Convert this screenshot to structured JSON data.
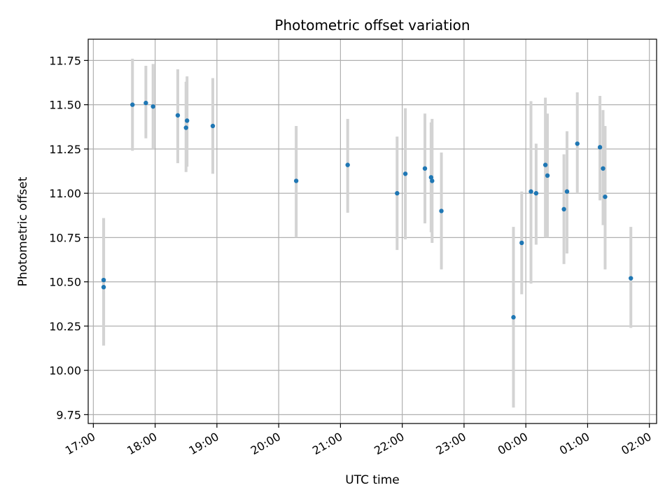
{
  "chart_data": {
    "type": "scatter",
    "title": "Photometric offset variation",
    "xlabel": "UTC time",
    "ylabel": "Photometric offset",
    "x_unit": "UTC time (hours of day, crossing midnight)",
    "xlim": [
      "16:55",
      "02:07"
    ],
    "ylim": [
      9.7,
      11.87
    ],
    "grid": true,
    "x_ticks": [
      "17:00",
      "18:00",
      "19:00",
      "20:00",
      "21:00",
      "22:00",
      "23:00",
      "00:00",
      "01:00",
      "02:00"
    ],
    "y_ticks": [
      9.75,
      10.0,
      10.25,
      10.5,
      10.75,
      11.0,
      11.25,
      11.5,
      11.75
    ],
    "y_tick_labels": [
      "9.75",
      "10.00",
      "10.25",
      "10.50",
      "10.75",
      "11.00",
      "11.25",
      "11.50",
      "11.75"
    ],
    "colors": {
      "point": "#1f77b4",
      "errorbar": "#d3d3d3",
      "grid": "#b0b0b0"
    },
    "points": [
      {
        "t": "17:10",
        "y": 10.51,
        "lo": 10.14,
        "hi": 10.86
      },
      {
        "t": "17:10",
        "y": 10.47,
        "lo": 10.14,
        "hi": 10.86
      },
      {
        "t": "17:38",
        "y": 11.5,
        "lo": 11.24,
        "hi": 11.76
      },
      {
        "t": "17:51",
        "y": 11.51,
        "lo": 11.31,
        "hi": 11.72
      },
      {
        "t": "17:58",
        "y": 11.49,
        "lo": 11.25,
        "hi": 11.73
      },
      {
        "t": "18:22",
        "y": 11.44,
        "lo": 11.17,
        "hi": 11.7
      },
      {
        "t": "18:30",
        "y": 11.37,
        "lo": 11.12,
        "hi": 11.63
      },
      {
        "t": "18:31",
        "y": 11.41,
        "lo": 11.15,
        "hi": 11.66
      },
      {
        "t": "18:56",
        "y": 11.38,
        "lo": 11.11,
        "hi": 11.65
      },
      {
        "t": "20:17",
        "y": 11.07,
        "lo": 10.75,
        "hi": 11.38
      },
      {
        "t": "21:07",
        "y": 11.16,
        "lo": 10.89,
        "hi": 11.42
      },
      {
        "t": "21:55",
        "y": 11.0,
        "lo": 10.68,
        "hi": 11.32
      },
      {
        "t": "22:03",
        "y": 11.11,
        "lo": 10.74,
        "hi": 11.48
      },
      {
        "t": "22:22",
        "y": 11.14,
        "lo": 10.83,
        "hi": 11.45
      },
      {
        "t": "22:28",
        "y": 11.09,
        "lo": 10.78,
        "hi": 11.4
      },
      {
        "t": "22:29",
        "y": 11.07,
        "lo": 10.72,
        "hi": 11.42
      },
      {
        "t": "22:38",
        "y": 10.9,
        "lo": 10.57,
        "hi": 11.23
      },
      {
        "t": "23:48",
        "y": 10.3,
        "lo": 9.79,
        "hi": 10.81
      },
      {
        "t": "23:56",
        "y": 10.72,
        "lo": 10.43,
        "hi": 11.01
      },
      {
        "t": "00:05",
        "y": 11.01,
        "lo": 10.49,
        "hi": 11.52
      },
      {
        "t": "00:10",
        "y": 11.0,
        "lo": 10.71,
        "hi": 11.28
      },
      {
        "t": "00:19",
        "y": 11.16,
        "lo": 10.75,
        "hi": 11.54
      },
      {
        "t": "00:21",
        "y": 11.1,
        "lo": 10.75,
        "hi": 11.45
      },
      {
        "t": "00:37",
        "y": 10.91,
        "lo": 10.6,
        "hi": 11.22
      },
      {
        "t": "00:40",
        "y": 11.01,
        "lo": 10.66,
        "hi": 11.35
      },
      {
        "t": "00:50",
        "y": 11.28,
        "lo": 11.0,
        "hi": 11.57
      },
      {
        "t": "01:12",
        "y": 11.26,
        "lo": 10.96,
        "hi": 11.55
      },
      {
        "t": "01:15",
        "y": 11.14,
        "lo": 10.82,
        "hi": 11.47
      },
      {
        "t": "01:17",
        "y": 10.98,
        "lo": 10.57,
        "hi": 11.38
      },
      {
        "t": "01:42",
        "y": 10.52,
        "lo": 10.24,
        "hi": 10.81
      }
    ]
  }
}
